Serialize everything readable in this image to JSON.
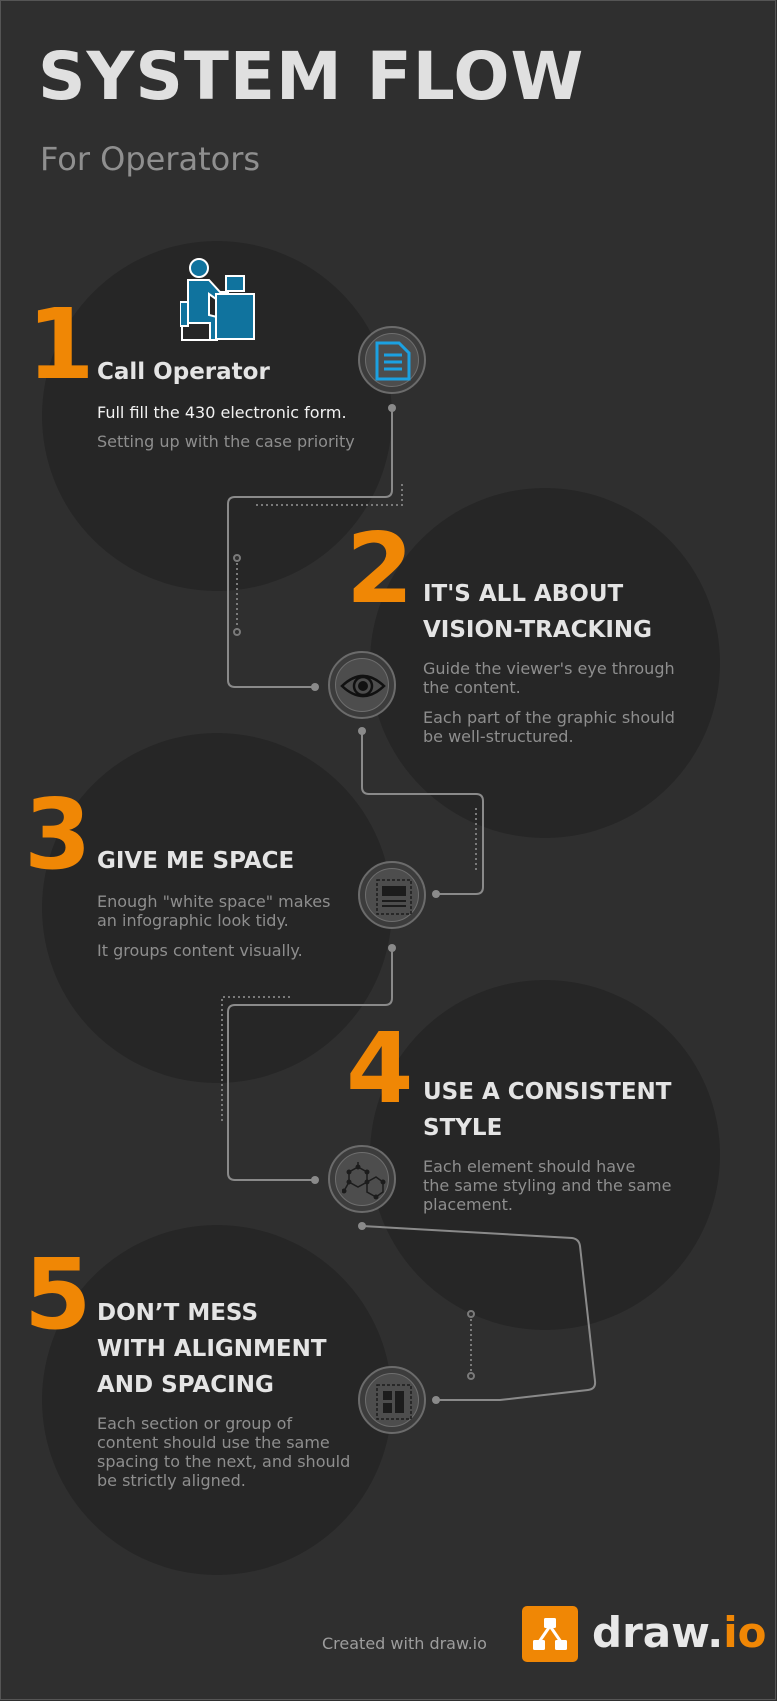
{
  "header": {
    "title": "SYSTEM FLOW",
    "subtitle": "For Operators"
  },
  "steps": [
    {
      "number": "1",
      "heading_lines": [
        "Call Operator"
      ],
      "body_highlight": "Full fill the 430 electronic form.",
      "body_paragraphs": [
        [
          "Setting up with the case priority"
        ]
      ],
      "icon": "document-icon"
    },
    {
      "number": "2",
      "heading_lines": [
        "IT'S ALL ABOUT",
        "VISION-TRACKING"
      ],
      "body_paragraphs": [
        [
          "Guide the viewer's eye through",
          "the content."
        ],
        [
          "Each part of the graphic should",
          "be well-structured."
        ]
      ],
      "icon": "eye-icon"
    },
    {
      "number": "3",
      "heading_lines": [
        "GIVE ME SPACE"
      ],
      "body_paragraphs": [
        [
          "Enough \"white space\" makes",
          "an infographic look tidy."
        ],
        [
          "It groups content visually."
        ]
      ],
      "icon": "layout-icon"
    },
    {
      "number": "4",
      "heading_lines": [
        "USE A CONSISTENT",
        "STYLE"
      ],
      "body_paragraphs": [
        [
          "Each element should have",
          "the same styling and the same",
          "placement."
        ]
      ],
      "icon": "molecule-icon"
    },
    {
      "number": "5",
      "heading_lines": [
        "DON’T MESS",
        "WITH ALIGNMENT",
        "AND SPACING"
      ],
      "body_paragraphs": [
        [
          "Each section or group of",
          "content should use the same",
          "spacing to the next, and should",
          "be strictly aligned."
        ]
      ],
      "icon": "grid-icon"
    }
  ],
  "footer": {
    "created_with": "Created with draw.io",
    "logo_word": "draw.",
    "logo_suffix": "io"
  },
  "colors": {
    "background": "#2f2f2f",
    "circle": "#262626",
    "accent": "#f08705",
    "heading": "#e4e4e4",
    "body": "#8e8e8e",
    "operator_blue": "#10739e"
  }
}
